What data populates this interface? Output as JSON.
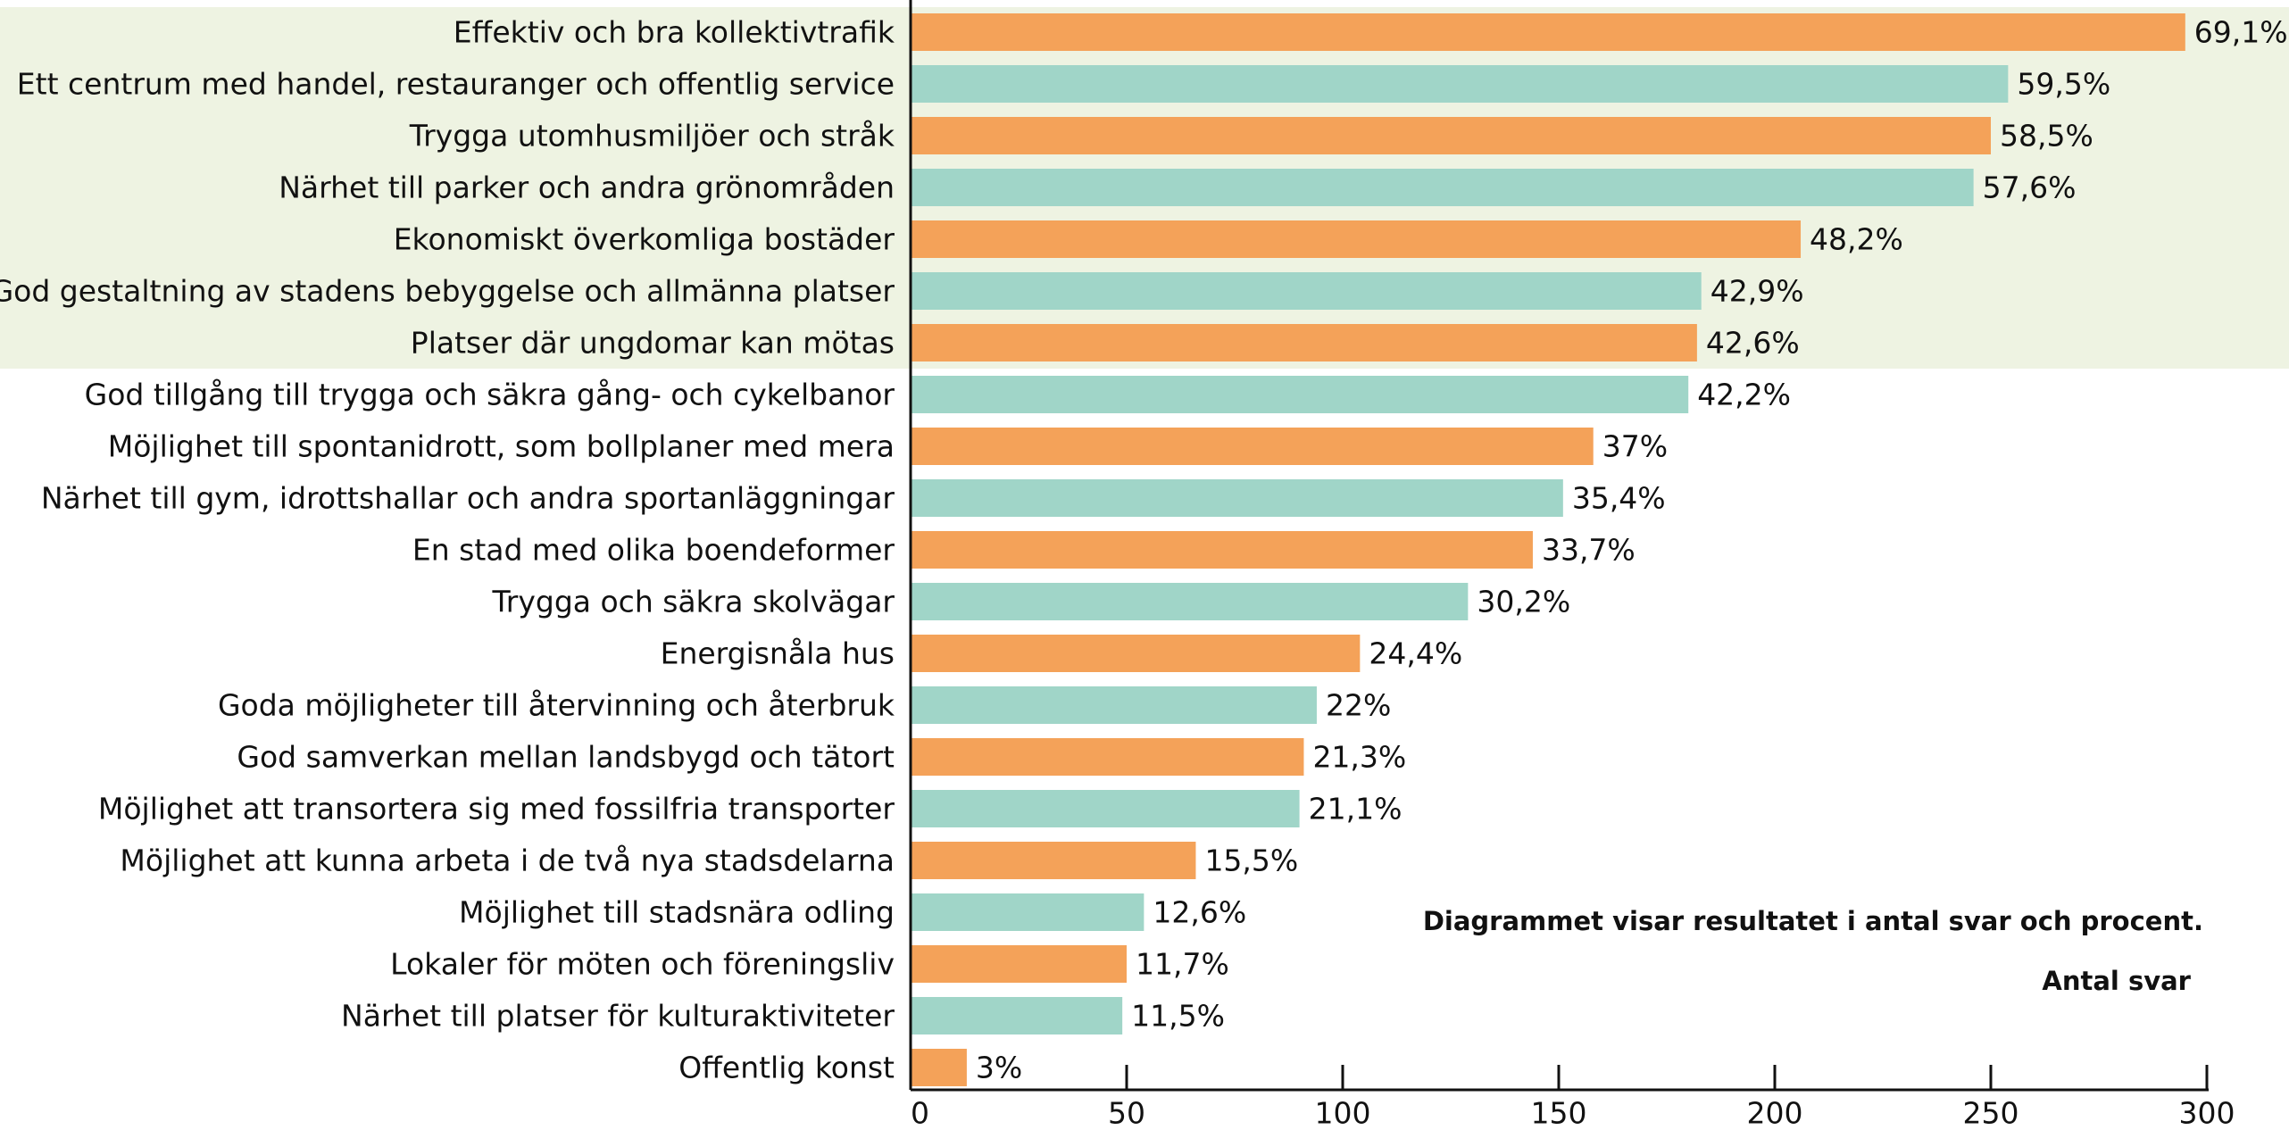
{
  "chart_data": {
    "type": "barh",
    "categories": [
      "Effektiv och bra kollektivtrafik",
      "Ett centrum med handel, restauranger och offentlig service",
      "Trygga utomhusmiljöer och stråk",
      "Närhet till parker och andra grönområden",
      "Ekonomiskt överkomliga bostäder",
      "God gestaltning av stadens bebyggelse och allmänna platser",
      "Platser där ungdomar kan mötas",
      "God tillgång till trygga och säkra gång- och cykelbanor",
      "Möjlighet till spontanidrott, som bollplaner med mera",
      "Närhet till gym, idrottshallar och andra sportanläggningar",
      "En stad med olika boendeformer",
      "Trygga och säkra skolvägar",
      "Energisnåla hus",
      "Goda möjligheter till återvinning och återbruk",
      "God samverkan mellan landsbygd och tätort",
      "Möjlighet att transortera sig med fossilfria transporter",
      "Möjlighet att kunna arbeta i de två nya stadsdelarna",
      "Möjlighet till stadsnära odling",
      "Lokaler för möten och föreningsliv",
      "Närhet till platser för kulturaktiviteter",
      "Offentlig konst"
    ],
    "values": [
      295,
      254,
      250,
      246,
      206,
      183,
      182,
      180,
      158,
      151,
      144,
      129,
      104,
      94,
      91,
      90,
      66,
      54,
      50,
      49,
      13
    ],
    "value_labels": [
      "69,1%",
      "59,5%",
      "58,5%",
      "57,6%",
      "48,2%",
      "42,9%",
      "42,6%",
      "42,2%",
      "37%",
      "35,4%",
      "33,7%",
      "30,2%",
      "24,4%",
      "22%",
      "21,3%",
      "21,1%",
      "15,5%",
      "12,6%",
      "11,7%",
      "11,5%",
      "3%"
    ],
    "colors": [
      "#f4a259",
      "#a0d5c8"
    ],
    "highlight": {
      "rows": 7,
      "color": "#eef3e2"
    },
    "xlim": [
      0,
      300
    ],
    "xticks": [
      0,
      50,
      100,
      150,
      200,
      250,
      300
    ],
    "xlabel": "Antal svar",
    "annotation": "Diagrammet visar resultatet i antal svar och procent."
  }
}
